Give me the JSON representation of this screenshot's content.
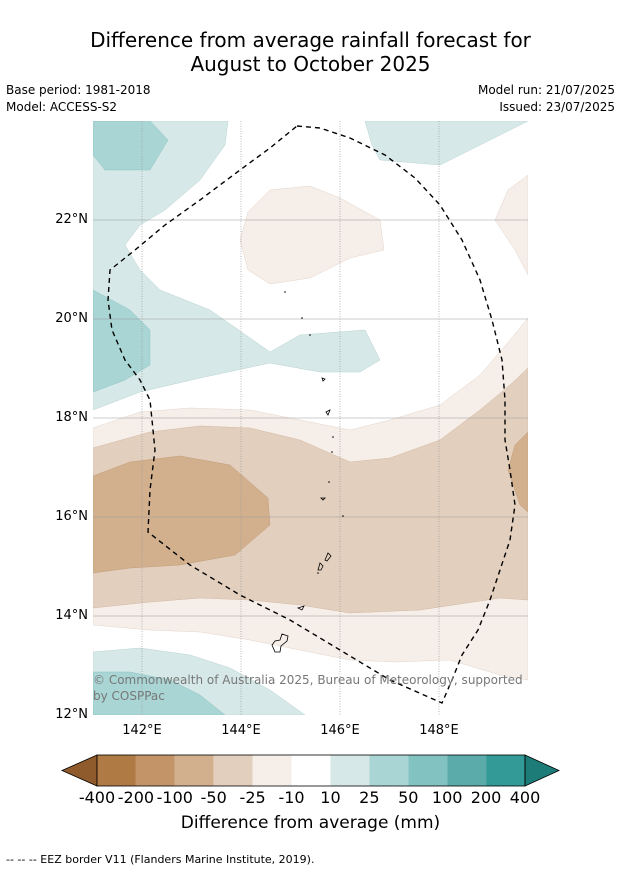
{
  "title_line1": "Difference from average rainfall forecast for",
  "title_line2": "August to October 2025",
  "meta_left": [
    "Base period: 1981-2018",
    "Model: ACCESS-S2"
  ],
  "meta_right": [
    "Model run: 21/07/2025",
    "Issued: 23/07/2025"
  ],
  "lat_labels": [
    "22°N",
    "20°N",
    "18°N",
    "16°N",
    "14°N",
    "12°N"
  ],
  "lon_labels": [
    "142°E",
    "144°E",
    "146°E",
    "148°E"
  ],
  "copyright": "© Commonwealth of Australia 2025, Bureau of Meteorology, supported by COSPPac",
  "colorbar": {
    "ticks": [
      "-400",
      "-200",
      "-100",
      "-50",
      "-25",
      "-10",
      "10",
      "25",
      "50",
      "100",
      "200",
      "400"
    ],
    "colors": [
      "#8f5a2c",
      "#b07a44",
      "#c29468",
      "#d2b08e",
      "#e3cfbd",
      "#f5eee9",
      "#ffffff",
      "#d6e9e8",
      "#a9d5d4",
      "#82c2c1",
      "#5aabaa",
      "#339a97",
      "#1e7c78"
    ],
    "title": "Difference from average (mm)"
  },
  "footnote": "--  --  -- EEZ border V11 (Flanders Marine Institute, 2019)."
}
